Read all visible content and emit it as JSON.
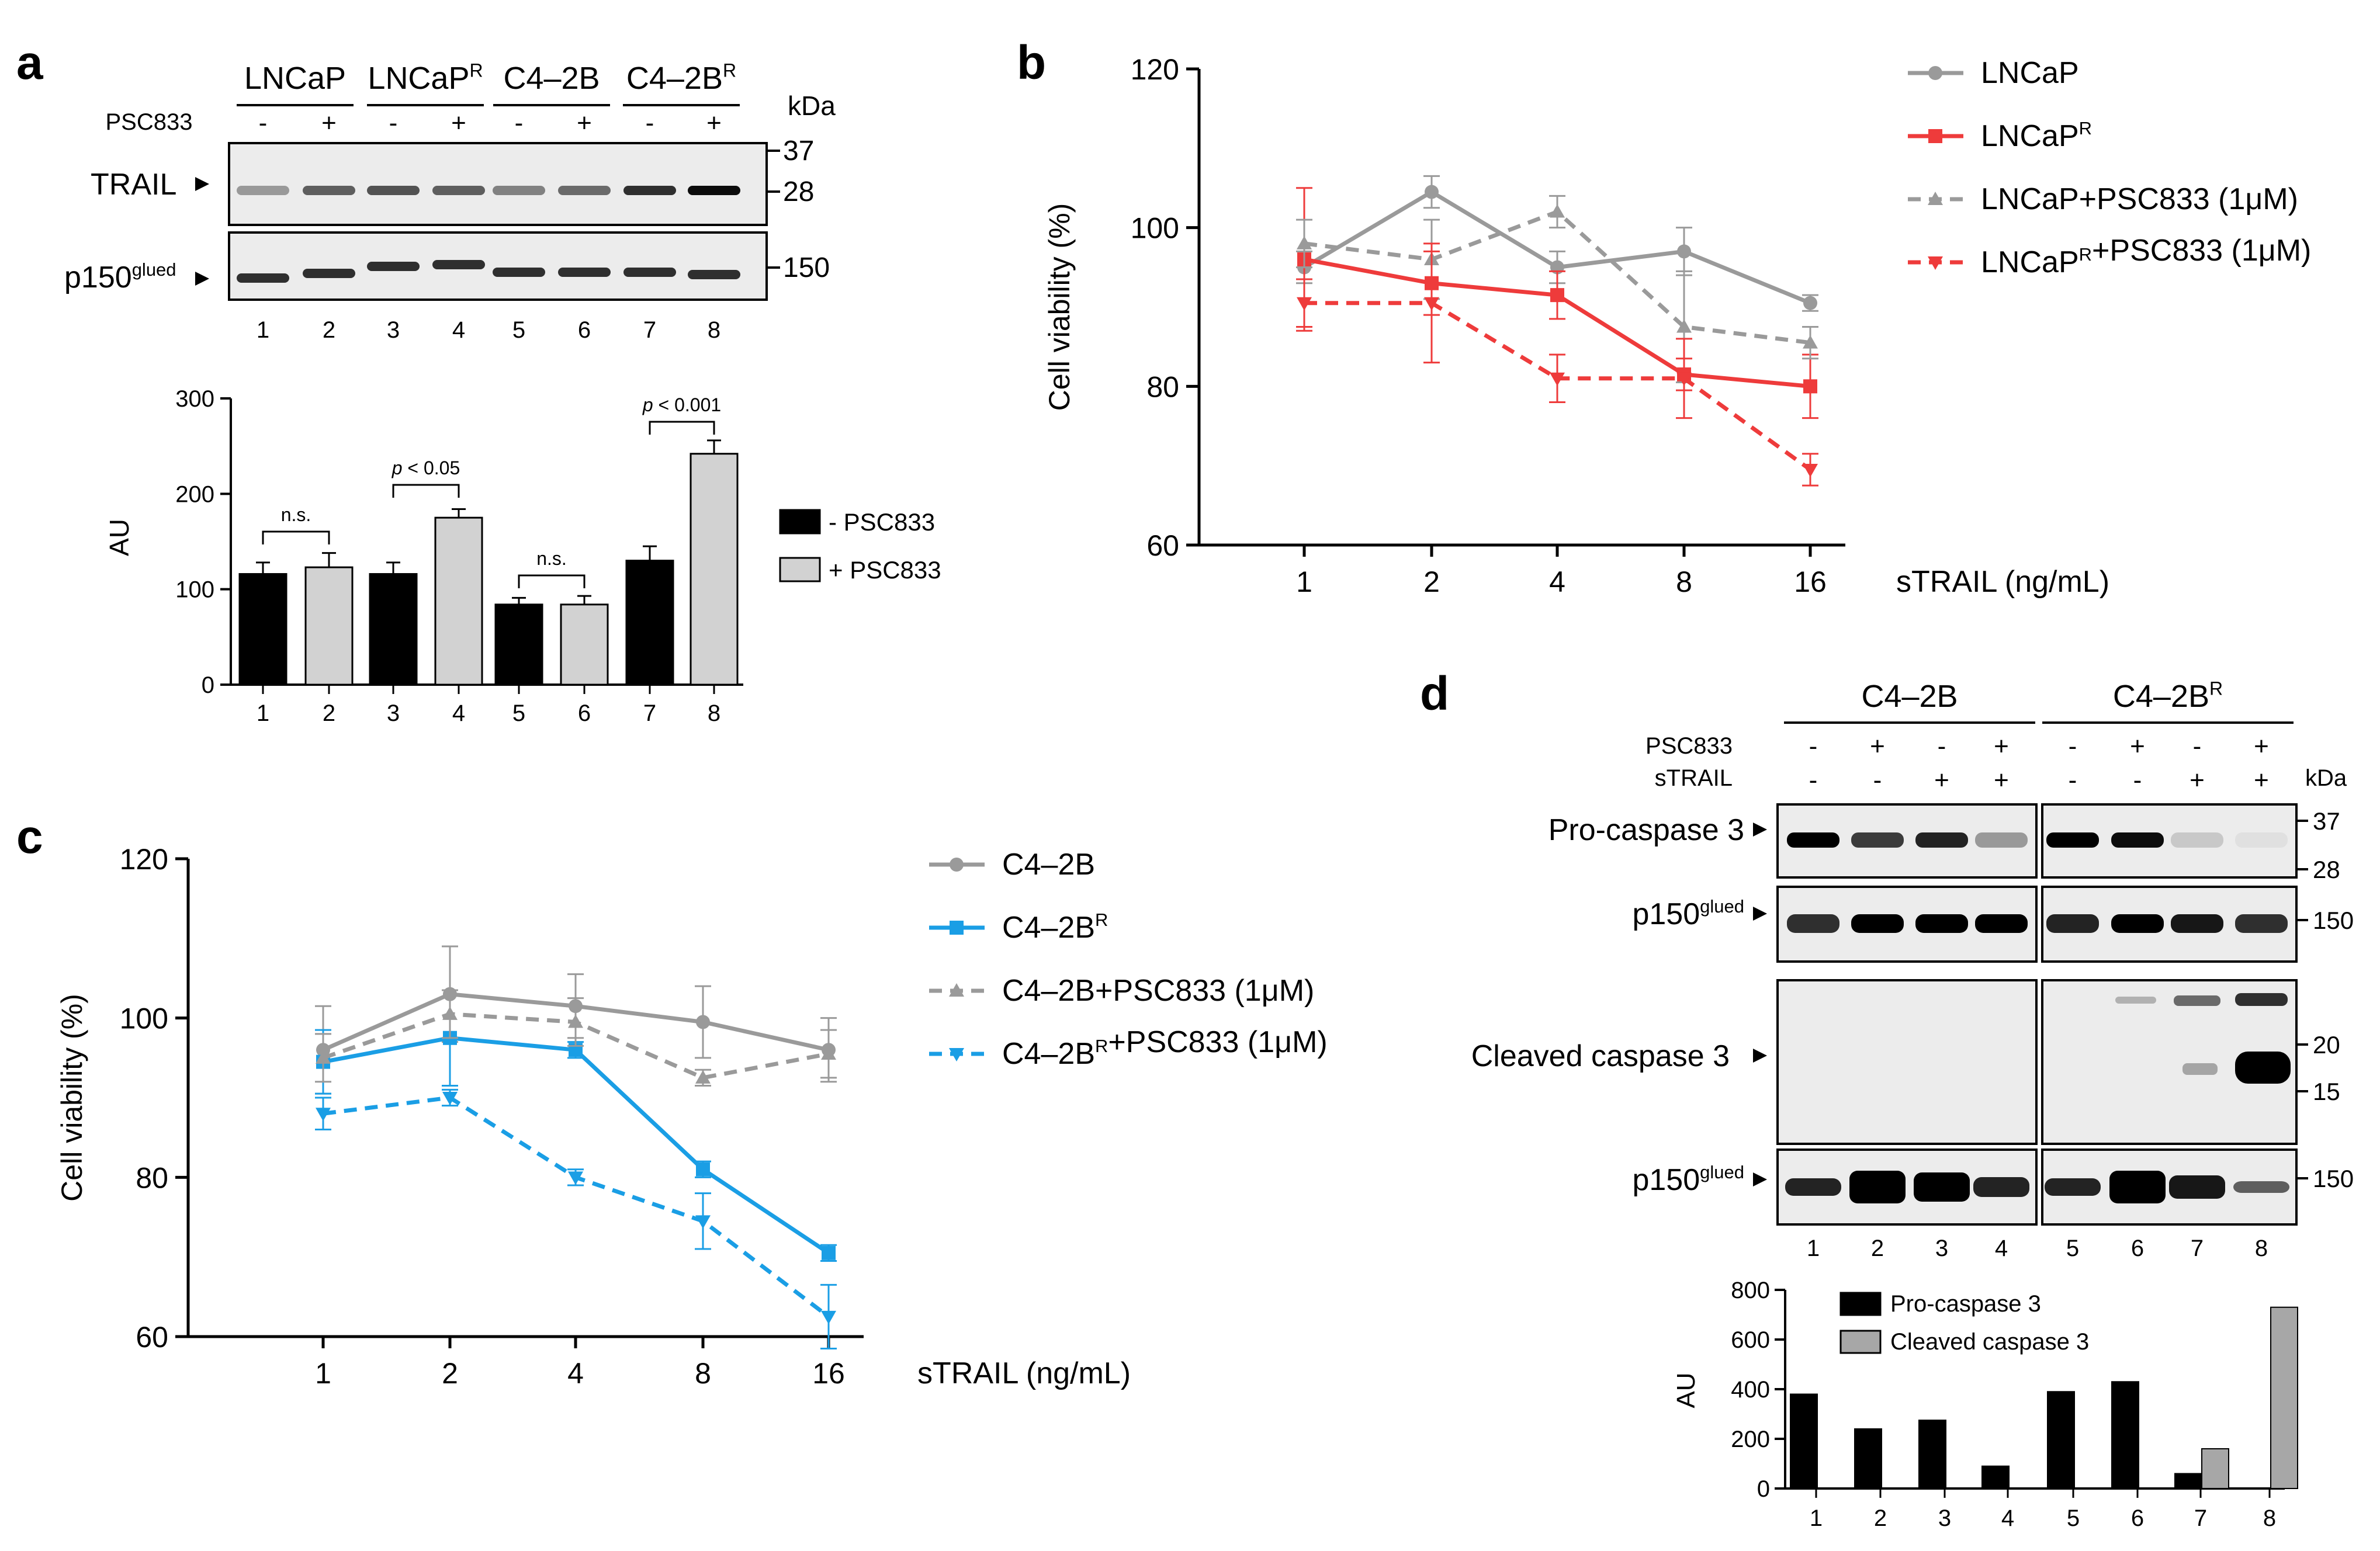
{
  "figure": {
    "panel_letters": [
      "a",
      "b",
      "c",
      "d"
    ],
    "colors": {
      "black": "#000000",
      "light_gray_bar": "#d2d2d2",
      "mid_gray_bar": "#a7a7a7",
      "gray_line": "#9a9a9a",
      "red_line": "#ee3b3b",
      "blue_line": "#1a9ee5",
      "blot_bg": "#ececec"
    }
  },
  "panel_a": {
    "cell_lines": [
      "LNCaP",
      "LNCaP",
      "C4–2B",
      "C4–2B"
    ],
    "cell_line_sup": [
      "",
      "R",
      "",
      "R"
    ],
    "treatment_label": "PSC833",
    "treatment_signs": [
      "-",
      "+",
      "-",
      "+",
      "-",
      "+",
      "-",
      "+"
    ],
    "kda_label": "kDa",
    "markers": [
      "37",
      "28",
      "150"
    ],
    "blots": [
      {
        "label": "TRAIL",
        "sup": ""
      },
      {
        "label": "p150",
        "sup": "glued"
      }
    ],
    "lane_numbers": [
      "1",
      "2",
      "3",
      "4",
      "5",
      "6",
      "7",
      "8"
    ],
    "chart_data": {
      "type": "bar",
      "ylabel": "AU",
      "ylim": [
        0,
        300
      ],
      "yticks": [
        "0",
        "100",
        "200",
        "300"
      ],
      "categories": [
        "1",
        "2",
        "3",
        "4",
        "5",
        "6",
        "7",
        "8"
      ],
      "values": [
        116,
        123,
        116,
        175,
        84,
        84,
        130,
        242
      ],
      "errors": [
        12,
        15,
        12,
        9,
        7,
        9,
        15,
        14
      ],
      "groups": [
        "- PSC833",
        "+ PSC833",
        "- PSC833",
        "+ PSC833",
        "- PSC833",
        "+ PSC833",
        "- PSC833",
        "+ PSC833"
      ],
      "legend": [
        "- PSC833",
        "+ PSC833"
      ],
      "annotations": [
        "n.s.",
        "p < 0.05",
        "n.s.",
        "p < 0.001"
      ]
    }
  },
  "panel_b": {
    "chart_data": {
      "type": "line",
      "ylabel": "Cell viability (%)",
      "xlabel": "sTRAIL (ng/mL)",
      "x": [
        "1",
        "2",
        "4",
        "8",
        "16"
      ],
      "ylim": [
        60,
        120
      ],
      "yticks": [
        "60",
        "80",
        "100",
        "120"
      ],
      "series": [
        {
          "name": "LNCaP",
          "sup": "",
          "name_tail": "",
          "values": [
            95,
            104.5,
            95,
            97,
            90.5
          ],
          "errors": [
            2,
            2,
            2,
            3,
            1
          ],
          "color": "#9a9a9a",
          "dashed": false,
          "marker": "circle"
        },
        {
          "name": "LNCaP",
          "sup": "R",
          "name_tail": "",
          "values": [
            96,
            93,
            91.5,
            81.5,
            80
          ],
          "errors": [
            9,
            4,
            3,
            2,
            4
          ],
          "color": "#ee3b3b",
          "dashed": false,
          "marker": "square"
        },
        {
          "name": "LNCaP+PSC833 (1",
          "sup": "",
          "name_tail": "M)",
          "values": [
            98,
            96,
            102,
            87.5,
            85.5
          ],
          "errors": [
            3,
            5,
            2,
            7,
            2
          ],
          "color": "#9a9a9a",
          "dashed": true,
          "marker": "triangle"
        },
        {
          "name": "LNCaP",
          "sup": "R",
          "name_tail": "+PSC833 (1",
          "name_tail2": "M)",
          "values": [
            90.5,
            90.5,
            81,
            81,
            69.5
          ],
          "errors": [
            3,
            7.5,
            3,
            5,
            2
          ],
          "color": "#ee3b3b",
          "dashed": true,
          "marker": "tri-down"
        }
      ]
    }
  },
  "panel_c": {
    "chart_data": {
      "type": "line",
      "ylabel": "Cell viability (%)",
      "xlabel": "sTRAIL (ng/mL)",
      "x": [
        "1",
        "2",
        "4",
        "8",
        "16"
      ],
      "ylim": [
        60,
        120
      ],
      "yticks": [
        "60",
        "80",
        "100",
        "120"
      ],
      "series": [
        {
          "name": "C4–2B",
          "sup": "",
          "name_tail": "",
          "values": [
            96,
            103,
            101.5,
            99.5,
            96
          ],
          "errors": [
            5.5,
            6,
            4,
            4.5,
            4
          ],
          "color": "#9a9a9a",
          "dashed": false,
          "marker": "circle"
        },
        {
          "name": "C4–2B",
          "sup": "R",
          "name_tail": "",
          "values": [
            94.5,
            97.5,
            96,
            81,
            70.5
          ],
          "errors": [
            4,
            6,
            1,
            1,
            1
          ],
          "color": "#1a9ee5",
          "dashed": false,
          "marker": "square"
        },
        {
          "name": "C4–2B+PSC833 (1",
          "sup": "",
          "name_tail": "M)",
          "values": [
            95,
            100.5,
            99.5,
            92.5,
            95.5
          ],
          "errors": [
            3,
            3,
            3,
            1,
            3
          ],
          "color": "#9a9a9a",
          "dashed": true,
          "marker": "triangle"
        },
        {
          "name": "C4–2B",
          "sup": "R",
          "name_tail": "+PSC833 (1",
          "name_tail2": "M)",
          "values": [
            88,
            90,
            80,
            74.5,
            62.5
          ],
          "errors": [
            2,
            1,
            1,
            3.5,
            4
          ],
          "color": "#1a9ee5",
          "dashed": true,
          "marker": "tri-down"
        }
      ]
    }
  },
  "panel_d": {
    "cell_lines": [
      "C4–2B",
      "C4–2B"
    ],
    "cell_line_sup": [
      "",
      "R"
    ],
    "row_labels": [
      "PSC833",
      "sTRAIL"
    ],
    "psc833_signs": [
      "-",
      "+",
      "-",
      "+",
      "-",
      "+",
      "-",
      "+"
    ],
    "strail_signs": [
      "-",
      "-",
      "+",
      "+",
      "-",
      "-",
      "+",
      "+"
    ],
    "kda_label": "kDa",
    "blots": [
      {
        "label": "Pro-caspase 3",
        "sup": ""
      },
      {
        "label": "p150",
        "sup": "glued"
      },
      {
        "label": "Cleaved caspase 3",
        "sup": ""
      },
      {
        "label": "p150",
        "sup": "glued"
      }
    ],
    "markers_pro": [
      "37",
      "28"
    ],
    "markers_p150_1": [
      "150"
    ],
    "markers_cleaved": [
      "20",
      "15"
    ],
    "markers_p150_2": [
      "150"
    ],
    "lane_numbers": [
      "1",
      "2",
      "3",
      "4",
      "5",
      "6",
      "7",
      "8"
    ],
    "chart_data": {
      "type": "bar",
      "ylabel": "AU",
      "ylim": [
        0,
        800
      ],
      "yticks": [
        "0",
        "200",
        "400",
        "600",
        "800"
      ],
      "categories": [
        "1",
        "2",
        "3",
        "4",
        "5",
        "6",
        "7",
        "8"
      ],
      "series": [
        {
          "name": "Pro-caspase 3",
          "values": [
            380,
            240,
            275,
            90,
            390,
            430,
            60,
            0
          ],
          "color": "#000000"
        },
        {
          "name": "Cleaved caspase 3",
          "values": [
            0,
            0,
            0,
            0,
            0,
            0,
            160,
            730
          ],
          "color": "#a7a7a7"
        }
      ]
    }
  }
}
